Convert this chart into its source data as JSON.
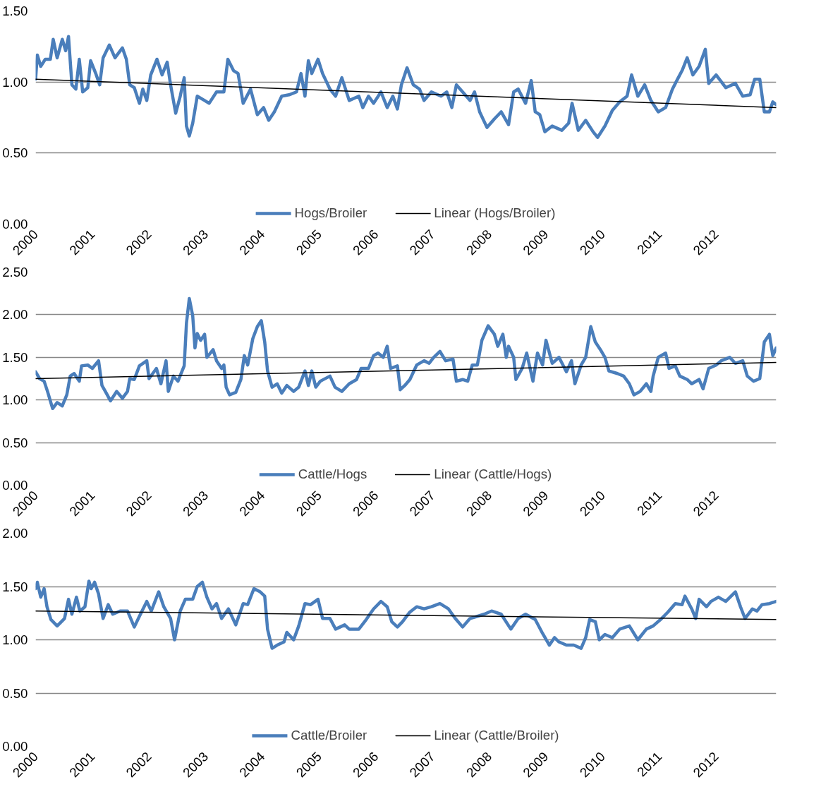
{
  "chart_data": [
    {
      "type": "line",
      "grid": "y",
      "legend": "bottom",
      "marker": "none",
      "line_style": "solid",
      "xlim": [
        2000,
        2013.06
      ],
      "xticks": [
        2000,
        2001,
        2002,
        2003,
        2004,
        2005,
        2006,
        2007,
        2008,
        2009,
        2010,
        2011,
        2012
      ],
      "ylim": [
        0,
        1.5
      ],
      "yticks": [
        {
          "value": 0,
          "label": "0.00"
        },
        {
          "value": 0.5,
          "label": "0.50"
        },
        {
          "value": 1,
          "label": "1.00"
        },
        {
          "value": 1.5,
          "label": "1.50"
        }
      ],
      "series": [
        {
          "name": "Hogs/Broiler",
          "color": "#4a7ebb",
          "x": [
            2000.0,
            2000.03,
            2000.09,
            2000.17,
            2000.26,
            2000.31,
            2000.38,
            2000.47,
            2000.53,
            2000.58,
            2000.64,
            2000.71,
            2000.77,
            2000.83,
            2000.92,
            2000.97,
            2001.06,
            2001.13,
            2001.19,
            2001.3,
            2001.4,
            2001.53,
            2001.6,
            2001.66,
            2001.74,
            2001.83,
            2001.89,
            2001.96,
            2002.03,
            2002.14,
            2002.23,
            2002.32,
            2002.38,
            2002.47,
            2002.55,
            2002.62,
            2002.66,
            2002.71,
            2002.77,
            2002.85,
            2002.98,
            2003.06,
            2003.19,
            2003.32,
            2003.39,
            2003.49,
            2003.57,
            2003.66,
            2003.79,
            2003.91,
            2004.02,
            2004.11,
            2004.21,
            2004.34,
            2004.47,
            2004.6,
            2004.68,
            2004.75,
            2004.81,
            2004.87,
            2004.98,
            2005.06,
            2005.19,
            2005.29,
            2005.4,
            2005.53,
            2005.7,
            2005.77,
            2005.87,
            2005.96,
            2006.09,
            2006.2,
            2006.3,
            2006.38,
            2006.45,
            2006.55,
            2006.66,
            2006.77,
            2006.85,
            2006.98,
            2007.15,
            2007.25,
            2007.34,
            2007.42,
            2007.53,
            2007.66,
            2007.74,
            2007.83,
            2007.96,
            2008.09,
            2008.21,
            2008.34,
            2008.43,
            2008.51,
            2008.64,
            2008.74,
            2008.81,
            2008.89,
            2008.98,
            2009.11,
            2009.28,
            2009.4,
            2009.46,
            2009.57,
            2009.7,
            2009.83,
            2009.91,
            2010.04,
            2010.17,
            2010.3,
            2010.43,
            2010.51,
            2010.62,
            2010.74,
            2010.85,
            2010.98,
            2011.11,
            2011.23,
            2011.32,
            2011.4,
            2011.49,
            2011.59,
            2011.7,
            2011.81,
            2011.87,
            2012.0,
            2012.17,
            2012.34,
            2012.47,
            2012.6,
            2012.68,
            2012.77,
            2012.85,
            2012.94,
            2013.0,
            2013.06
          ],
          "values": [
            1.02,
            1.19,
            1.11,
            1.16,
            1.16,
            1.3,
            1.17,
            1.3,
            1.22,
            1.32,
            0.98,
            0.95,
            1.16,
            0.93,
            0.96,
            1.15,
            1.06,
            0.98,
            1.17,
            1.26,
            1.17,
            1.24,
            1.16,
            0.98,
            0.96,
            0.85,
            0.95,
            0.87,
            1.05,
            1.16,
            1.05,
            1.14,
            0.98,
            0.78,
            0.9,
            1.03,
            0.69,
            0.62,
            0.71,
            0.9,
            0.87,
            0.85,
            0.93,
            0.93,
            1.16,
            1.08,
            1.06,
            0.85,
            0.95,
            0.77,
            0.82,
            0.73,
            0.79,
            0.9,
            0.91,
            0.93,
            1.06,
            0.9,
            1.15,
            1.06,
            1.16,
            1.06,
            0.95,
            0.9,
            1.03,
            0.87,
            0.9,
            0.82,
            0.9,
            0.85,
            0.93,
            0.82,
            0.9,
            0.81,
            0.98,
            1.1,
            0.98,
            0.95,
            0.87,
            0.93,
            0.9,
            0.93,
            0.82,
            0.98,
            0.93,
            0.87,
            0.93,
            0.79,
            0.68,
            0.74,
            0.79,
            0.7,
            0.93,
            0.95,
            0.85,
            1.01,
            0.79,
            0.77,
            0.65,
            0.69,
            0.66,
            0.71,
            0.85,
            0.66,
            0.73,
            0.65,
            0.61,
            0.69,
            0.8,
            0.86,
            0.9,
            1.05,
            0.9,
            0.98,
            0.87,
            0.79,
            0.82,
            0.95,
            1.02,
            1.08,
            1.17,
            1.05,
            1.11,
            1.23,
            0.99,
            1.05,
            0.96,
            0.99,
            0.9,
            0.91,
            1.02,
            1.02,
            0.79,
            0.79,
            0.86,
            0.84
          ]
        },
        {
          "name": "Linear (Hogs/Broiler)",
          "color": "#000000",
          "x": [
            2000,
            2013.06
          ],
          "values": [
            1.02,
            0.82
          ]
        }
      ]
    },
    {
      "type": "line",
      "grid": "y",
      "legend": "bottom",
      "marker": "none",
      "line_style": "solid",
      "xlim": [
        2000,
        2013.06
      ],
      "xticks": [
        2000,
        2001,
        2002,
        2003,
        2004,
        2005,
        2006,
        2007,
        2008,
        2009,
        2010,
        2011,
        2012
      ],
      "ylim": [
        0,
        2.5
      ],
      "yticks": [
        {
          "value": 0,
          "label": "0.00"
        },
        {
          "value": 0.5,
          "label": "0.50"
        },
        {
          "value": 1,
          "label": "1.00"
        },
        {
          "value": 1.5,
          "label": "1.50"
        },
        {
          "value": 2,
          "label": "2.00"
        },
        {
          "value": 2.5,
          "label": "2.50"
        }
      ],
      "series": [
        {
          "name": "Cattle/Hogs",
          "color": "#4a7ebb",
          "x": [
            2000.0,
            2000.07,
            2000.15,
            2000.21,
            2000.3,
            2000.38,
            2000.47,
            2000.55,
            2000.61,
            2000.68,
            2000.77,
            2000.81,
            2000.92,
            2001.0,
            2001.11,
            2001.17,
            2001.23,
            2001.32,
            2001.43,
            2001.53,
            2001.62,
            2001.66,
            2001.74,
            2001.83,
            2001.96,
            2002.0,
            2002.13,
            2002.21,
            2002.3,
            2002.34,
            2002.43,
            2002.51,
            2002.62,
            2002.66,
            2002.71,
            2002.77,
            2002.81,
            2002.85,
            2002.91,
            2002.98,
            2003.02,
            2003.13,
            2003.19,
            2003.28,
            2003.32,
            2003.36,
            2003.42,
            2003.53,
            2003.62,
            2003.68,
            2003.74,
            2003.83,
            2003.91,
            2003.98,
            2004.04,
            2004.09,
            2004.17,
            2004.26,
            2004.34,
            2004.43,
            2004.55,
            2004.64,
            2004.75,
            2004.81,
            2004.87,
            2004.94,
            2005.02,
            2005.19,
            2005.28,
            2005.4,
            2005.53,
            2005.66,
            2005.74,
            2005.87,
            2005.96,
            2006.04,
            2006.13,
            2006.2,
            2006.26,
            2006.38,
            2006.43,
            2006.51,
            2006.6,
            2006.72,
            2006.85,
            2006.94,
            2007.02,
            2007.13,
            2007.23,
            2007.36,
            2007.42,
            2007.53,
            2007.62,
            2007.7,
            2007.79,
            2007.87,
            2007.98,
            2008.09,
            2008.15,
            2008.24,
            2008.3,
            2008.34,
            2008.43,
            2008.47,
            2008.58,
            2008.66,
            2008.77,
            2008.85,
            2008.94,
            2009.0,
            2009.11,
            2009.23,
            2009.36,
            2009.45,
            2009.51,
            2009.62,
            2009.7,
            2009.79,
            2009.87,
            2009.96,
            2010.04,
            2010.11,
            2010.26,
            2010.37,
            2010.47,
            2010.55,
            2010.66,
            2010.77,
            2010.85,
            2010.89,
            2010.98,
            2011.11,
            2011.17,
            2011.28,
            2011.36,
            2011.49,
            2011.57,
            2011.7,
            2011.77,
            2011.87,
            2012.0,
            2012.09,
            2012.24,
            2012.34,
            2012.47,
            2012.55,
            2012.66,
            2012.77,
            2012.85,
            2012.94,
            2013.0,
            2013.06
          ],
          "values": [
            1.33,
            1.25,
            1.22,
            1.1,
            0.9,
            0.97,
            0.93,
            1.06,
            1.28,
            1.31,
            1.22,
            1.4,
            1.41,
            1.37,
            1.46,
            1.17,
            1.1,
            0.99,
            1.1,
            1.02,
            1.1,
            1.25,
            1.24,
            1.4,
            1.46,
            1.25,
            1.37,
            1.19,
            1.46,
            1.1,
            1.28,
            1.22,
            1.4,
            1.9,
            2.19,
            1.99,
            1.61,
            1.78,
            1.7,
            1.77,
            1.5,
            1.59,
            1.46,
            1.37,
            1.41,
            1.15,
            1.06,
            1.09,
            1.24,
            1.52,
            1.41,
            1.72,
            1.86,
            1.93,
            1.68,
            1.34,
            1.15,
            1.19,
            1.08,
            1.17,
            1.1,
            1.15,
            1.34,
            1.17,
            1.34,
            1.15,
            1.22,
            1.28,
            1.15,
            1.1,
            1.19,
            1.24,
            1.37,
            1.37,
            1.52,
            1.55,
            1.5,
            1.63,
            1.37,
            1.4,
            1.12,
            1.17,
            1.24,
            1.41,
            1.46,
            1.43,
            1.5,
            1.57,
            1.46,
            1.48,
            1.22,
            1.24,
            1.22,
            1.41,
            1.41,
            1.7,
            1.87,
            1.77,
            1.63,
            1.77,
            1.5,
            1.63,
            1.5,
            1.24,
            1.37,
            1.55,
            1.22,
            1.55,
            1.41,
            1.7,
            1.43,
            1.5,
            1.33,
            1.46,
            1.19,
            1.41,
            1.5,
            1.86,
            1.68,
            1.59,
            1.5,
            1.34,
            1.31,
            1.28,
            1.19,
            1.06,
            1.1,
            1.19,
            1.1,
            1.28,
            1.5,
            1.55,
            1.37,
            1.4,
            1.28,
            1.24,
            1.19,
            1.24,
            1.13,
            1.37,
            1.41,
            1.46,
            1.5,
            1.43,
            1.46,
            1.28,
            1.22,
            1.25,
            1.68,
            1.77,
            1.52,
            1.61
          ]
        },
        {
          "name": "Linear (Cattle/Hogs)",
          "color": "#000000",
          "x": [
            2000,
            2013.06
          ],
          "values": [
            1.25,
            1.44
          ]
        }
      ]
    },
    {
      "type": "line",
      "grid": "y",
      "legend": "bottom",
      "marker": "none",
      "line_style": "solid",
      "xlim": [
        2000,
        2013.06
      ],
      "xticks": [
        2000,
        2001,
        2002,
        2003,
        2004,
        2005,
        2006,
        2007,
        2008,
        2009,
        2010,
        2011,
        2012
      ],
      "ylim": [
        0,
        2
      ],
      "yticks": [
        {
          "value": 0,
          "label": "0.00"
        },
        {
          "value": 0.5,
          "label": "0.50"
        },
        {
          "value": 1,
          "label": "1.00"
        },
        {
          "value": 1.5,
          "label": "1.50"
        },
        {
          "value": 2,
          "label": "2.00"
        }
      ],
      "series": [
        {
          "name": "Cattle/Broiler",
          "color": "#4a7ebb",
          "x": [
            2000.0,
            2000.03,
            2000.09,
            2000.15,
            2000.2,
            2000.27,
            2000.38,
            2000.51,
            2000.58,
            2000.64,
            2000.72,
            2000.78,
            2000.87,
            2000.94,
            2000.98,
            2001.04,
            2001.11,
            2001.19,
            2001.28,
            2001.36,
            2001.49,
            2001.62,
            2001.74,
            2001.83,
            2001.96,
            2002.04,
            2002.17,
            2002.26,
            2002.38,
            2002.45,
            2002.55,
            2002.64,
            2002.77,
            2002.85,
            2002.94,
            2003.02,
            2003.11,
            2003.19,
            2003.28,
            2003.4,
            2003.53,
            2003.66,
            2003.74,
            2003.85,
            2003.96,
            2004.04,
            2004.09,
            2004.17,
            2004.26,
            2004.38,
            2004.43,
            2004.55,
            2004.64,
            2004.75,
            2004.85,
            2004.98,
            2005.06,
            2005.19,
            2005.29,
            2005.45,
            2005.53,
            2005.7,
            2005.83,
            2005.96,
            2006.09,
            2006.2,
            2006.28,
            2006.38,
            2006.47,
            2006.6,
            2006.72,
            2006.85,
            2006.98,
            2007.13,
            2007.28,
            2007.4,
            2007.53,
            2007.66,
            2007.79,
            2007.91,
            2008.04,
            2008.21,
            2008.38,
            2008.51,
            2008.64,
            2008.81,
            2008.94,
            2009.06,
            2009.15,
            2009.23,
            2009.36,
            2009.49,
            2009.62,
            2009.7,
            2009.77,
            2009.87,
            2009.94,
            2010.04,
            2010.17,
            2010.3,
            2010.47,
            2010.62,
            2010.77,
            2010.89,
            2011.02,
            2011.15,
            2011.28,
            2011.4,
            2011.45,
            2011.57,
            2011.64,
            2011.7,
            2011.83,
            2011.91,
            2012.04,
            2012.17,
            2012.34,
            2012.43,
            2012.51,
            2012.64,
            2012.72,
            2012.81,
            2012.94,
            2013.06
          ],
          "values": [
            1.48,
            1.54,
            1.4,
            1.48,
            1.31,
            1.19,
            1.13,
            1.2,
            1.38,
            1.24,
            1.4,
            1.27,
            1.31,
            1.55,
            1.48,
            1.54,
            1.43,
            1.2,
            1.33,
            1.24,
            1.27,
            1.27,
            1.12,
            1.22,
            1.36,
            1.27,
            1.45,
            1.31,
            1.2,
            1.0,
            1.27,
            1.38,
            1.38,
            1.5,
            1.54,
            1.4,
            1.29,
            1.34,
            1.2,
            1.29,
            1.14,
            1.34,
            1.33,
            1.48,
            1.45,
            1.41,
            1.1,
            0.92,
            0.95,
            0.98,
            1.07,
            1.0,
            1.13,
            1.34,
            1.33,
            1.38,
            1.2,
            1.2,
            1.1,
            1.14,
            1.1,
            1.1,
            1.19,
            1.29,
            1.36,
            1.31,
            1.17,
            1.12,
            1.17,
            1.26,
            1.31,
            1.29,
            1.31,
            1.34,
            1.29,
            1.2,
            1.12,
            1.2,
            1.22,
            1.24,
            1.27,
            1.24,
            1.1,
            1.2,
            1.24,
            1.19,
            1.06,
            0.95,
            1.02,
            0.98,
            0.95,
            0.95,
            0.92,
            1.02,
            1.19,
            1.17,
            1.0,
            1.05,
            1.02,
            1.1,
            1.13,
            1.0,
            1.1,
            1.13,
            1.19,
            1.26,
            1.34,
            1.33,
            1.41,
            1.29,
            1.2,
            1.38,
            1.31,
            1.36,
            1.4,
            1.36,
            1.45,
            1.31,
            1.2,
            1.29,
            1.27,
            1.33,
            1.34,
            1.36
          ]
        },
        {
          "name": "Linear (Cattle/Broiler)",
          "color": "#000000",
          "x": [
            2000,
            2013.06
          ],
          "values": [
            1.27,
            1.19
          ]
        }
      ]
    }
  ]
}
